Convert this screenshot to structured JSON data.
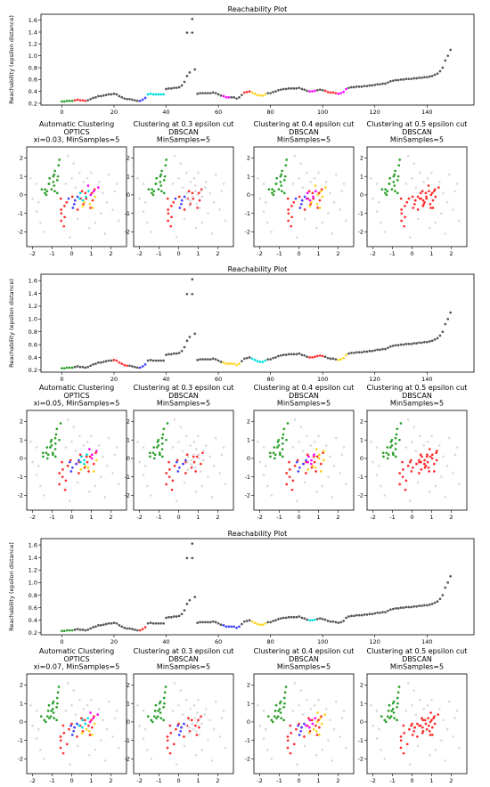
{
  "chart_data": [
    {
      "type": "scatter",
      "title": "Reachability Plot",
      "xlabel": "",
      "ylabel": "Reachability (epsilon distance)",
      "xlim": [
        -8,
        158
      ],
      "ylim": [
        0.17,
        1.7
      ],
      "xticks": [
        "0",
        "20",
        "40",
        "60",
        "80",
        "100",
        "120",
        "140"
      ],
      "yticks": [
        "0.2",
        "0.4",
        "0.6",
        "0.8",
        "1.0",
        "1.2",
        "1.4",
        "1.6"
      ],
      "x": [
        0,
        1,
        2,
        3,
        4,
        5,
        6,
        7,
        8,
        9,
        10,
        11,
        12,
        13,
        14,
        15,
        16,
        17,
        18,
        19,
        20,
        21,
        22,
        23,
        24,
        25,
        26,
        27,
        28,
        29,
        30,
        31,
        32,
        33,
        34,
        35,
        36,
        37,
        38,
        39,
        40,
        41,
        42,
        43,
        44,
        45,
        46,
        47,
        48,
        49,
        50,
        51,
        52,
        53,
        54,
        55,
        56,
        57,
        58,
        59,
        60,
        61,
        62,
        63,
        64,
        65,
        66,
        67,
        68,
        69,
        70,
        71,
        72,
        73,
        74,
        75,
        76,
        77,
        78,
        79,
        80,
        81,
        82,
        83,
        84,
        85,
        86,
        87,
        88,
        89,
        90,
        91,
        92,
        93,
        94,
        95,
        96,
        97,
        98,
        99,
        100,
        101,
        102,
        103,
        104,
        105,
        106,
        107,
        108,
        109,
        110,
        111,
        112,
        113,
        114,
        115,
        116,
        117,
        118,
        119,
        120,
        121,
        122,
        123,
        124,
        125,
        126,
        127,
        128,
        129,
        130,
        131,
        132,
        133,
        134,
        135,
        136,
        137,
        138,
        139,
        140,
        141,
        142,
        143,
        144,
        145,
        146,
        147,
        148,
        149
      ],
      "y": [
        0.23,
        0.23,
        0.24,
        0.24,
        0.24,
        0.25,
        0.26,
        0.25,
        0.25,
        0.24,
        0.25,
        0.27,
        0.29,
        0.3,
        0.32,
        0.32,
        0.33,
        0.34,
        0.35,
        0.35,
        0.36,
        0.35,
        0.32,
        0.3,
        0.28,
        0.27,
        0.27,
        0.26,
        0.25,
        0.24,
        0.24,
        0.26,
        0.29,
        0.35,
        0.36,
        0.35,
        0.35,
        0.35,
        0.35,
        0.35,
        0.44,
        0.45,
        0.45,
        0.46,
        0.46,
        0.47,
        0.5,
        0.56,
        0.66,
        0.72,
        1.39,
        0.77,
        0.36,
        0.37,
        0.37,
        0.37,
        0.37,
        0.37,
        0.38,
        0.37,
        0.35,
        0.33,
        0.32,
        0.3,
        0.3,
        0.3,
        0.3,
        0.28,
        0.3,
        0.34,
        0.38,
        0.39,
        0.4,
        0.38,
        0.36,
        0.34,
        0.33,
        0.33,
        0.35,
        0.37,
        0.37,
        0.39,
        0.4,
        0.42,
        0.43,
        0.44,
        0.44,
        0.45,
        0.45,
        0.45,
        0.45,
        0.46,
        0.44,
        0.43,
        0.41,
        0.4,
        0.4,
        0.41,
        0.42,
        0.43,
        0.42,
        0.41,
        0.39,
        0.38,
        0.38,
        0.37,
        0.36,
        0.37,
        0.39,
        0.44,
        0.46,
        0.47,
        0.47,
        0.48,
        0.48,
        0.48,
        0.49,
        0.49,
        0.5,
        0.5,
        0.51,
        0.52,
        0.52,
        0.53,
        0.53,
        0.55,
        0.57,
        0.58,
        0.59,
        0.59,
        0.6,
        0.6,
        0.61,
        0.61,
        0.61,
        0.62,
        0.62,
        0.63,
        0.63,
        0.64,
        0.64,
        0.65,
        0.66,
        0.68,
        0.7,
        0.74,
        0.8,
        0.92,
        1.0,
        1.1
      ],
      "extra_points": [
        {
          "x": 50,
          "y": 1.62
        },
        {
          "x": 48,
          "y": 1.39
        }
      ],
      "series_colors": [
        "#2ca02c",
        "#ff2d2d",
        "#4040ff",
        "#00dede",
        "#ff00ff",
        "#ffd21a",
        "#555555"
      ],
      "segments": [
        [
          0,
          4,
          0
        ],
        [
          5,
          9,
          1
        ],
        [
          10,
          29,
          6
        ],
        [
          30,
          32,
          2
        ],
        [
          33,
          39,
          3
        ],
        [
          40,
          51,
          6
        ],
        [
          52,
          61,
          6
        ],
        [
          62,
          64,
          4
        ],
        [
          65,
          69,
          6
        ],
        [
          70,
          72,
          1
        ],
        [
          73,
          78,
          5
        ],
        [
          79,
          94,
          6
        ],
        [
          95,
          97,
          4
        ],
        [
          98,
          100,
          6
        ],
        [
          101,
          105,
          1
        ],
        [
          106,
          109,
          4
        ],
        [
          110,
          149,
          6
        ]
      ]
    },
    {
      "type": "scatter",
      "title": "Reachability Plot",
      "xlabel": "",
      "ylabel": "Reachability (epsilon distance)",
      "xlim": [
        -8,
        158
      ],
      "ylim": [
        0.17,
        1.7
      ],
      "xticks": [
        "0",
        "20",
        "40",
        "60",
        "80",
        "100",
        "120",
        "140"
      ],
      "yticks": [
        "0.2",
        "0.4",
        "0.6",
        "0.8",
        "1.0",
        "1.2",
        "1.4",
        "1.6"
      ],
      "segments": [
        [
          0,
          4,
          0
        ],
        [
          5,
          9,
          6
        ],
        [
          10,
          19,
          6
        ],
        [
          20,
          25,
          1
        ],
        [
          26,
          29,
          6
        ],
        [
          30,
          32,
          2
        ],
        [
          33,
          39,
          6
        ],
        [
          40,
          51,
          6
        ],
        [
          52,
          61,
          6
        ],
        [
          62,
          68,
          5
        ],
        [
          69,
          72,
          6
        ],
        [
          73,
          78,
          3
        ],
        [
          79,
          94,
          6
        ],
        [
          95,
          100,
          1
        ],
        [
          101,
          105,
          6
        ],
        [
          106,
          109,
          5
        ],
        [
          110,
          149,
          6
        ]
      ]
    },
    {
      "type": "scatter",
      "title": "Reachability Plot",
      "xlabel": "",
      "ylabel": "Reachability (epsilon distance)",
      "xlim": [
        -8,
        158
      ],
      "ylim": [
        0.17,
        1.7
      ],
      "xticks": [
        "0",
        "20",
        "40",
        "60",
        "80",
        "100",
        "120",
        "140"
      ],
      "yticks": [
        "0.2",
        "0.4",
        "0.6",
        "0.8",
        "1.0",
        "1.2",
        "1.4",
        "1.6"
      ],
      "segments": [
        [
          0,
          4,
          0
        ],
        [
          5,
          29,
          6
        ],
        [
          30,
          32,
          1
        ],
        [
          33,
          61,
          6
        ],
        [
          62,
          68,
          2
        ],
        [
          69,
          72,
          6
        ],
        [
          73,
          78,
          5
        ],
        [
          79,
          94,
          6
        ],
        [
          95,
          97,
          3
        ],
        [
          98,
          149,
          6
        ]
      ]
    },
    {
      "type": "scatter",
      "panel": "clusters",
      "titles": [
        [
          "Automatic Clustering",
          "OPTICS",
          "xi=0.03, MinSamples=5"
        ],
        [
          "Clustering at 0.3 epsilon cut",
          "DBSCAN",
          "MinSamples=5"
        ],
        [
          "Clustering at 0.4 epsilon cut",
          "DBSCAN",
          "MinSamples=5"
        ],
        [
          "Clustering at 0.5 epsilon cut",
          "DBSCAN",
          "MinSamples=5"
        ]
      ],
      "xlim": [
        -2.3,
        2.8
      ],
      "ylim": [
        -2.8,
        2.6
      ],
      "xticks": [
        "-2",
        "-1",
        "0",
        "1",
        "2"
      ],
      "yticks": [
        "-2",
        "-1",
        "0",
        "1",
        "2"
      ]
    },
    {
      "type": "scatter",
      "panel": "clusters",
      "titles": [
        [
          "Automatic Clustering",
          "OPTICS",
          "xi=0.05, MinSamples=5"
        ],
        [
          "Clustering at 0.3 epsilon cut",
          "DBSCAN",
          "MinSamples=5"
        ],
        [
          "Clustering at 0.4 epsilon cut",
          "DBSCAN",
          "MinSamples=5"
        ],
        [
          "Clustering at 0.5 epsilon cut",
          "DBSCAN",
          "MinSamples=5"
        ]
      ],
      "xlim": [
        -2.3,
        2.8
      ],
      "ylim": [
        -2.8,
        2.6
      ],
      "xticks": [
        "-2",
        "-1",
        "0",
        "1",
        "2"
      ],
      "yticks": [
        "-2",
        "-1",
        "0",
        "1",
        "2"
      ]
    },
    {
      "type": "scatter",
      "panel": "clusters",
      "titles": [
        [
          "Automatic Clustering",
          "OPTICS",
          "xi=0.07, MinSamples=5"
        ],
        [
          "Clustering at 0.3 epsilon cut",
          "DBSCAN",
          "MinSamples=5"
        ],
        [
          "Clustering at 0.4 epsilon cut",
          "DBSCAN",
          "MinSamples=5"
        ],
        [
          "Clustering at 0.5 epsilon cut",
          "DBSCAN",
          "MinSamples=5"
        ]
      ],
      "xlim": [
        -2.3,
        2.8
      ],
      "ylim": [
        -2.8,
        2.6
      ],
      "xticks": [
        "-2",
        "-1",
        "0",
        "1",
        "2"
      ],
      "yticks": [
        "-2",
        "-1",
        "0",
        "1",
        "2"
      ]
    }
  ],
  "points": {
    "noise_color": "#d9d9dd",
    "clusters": [
      {
        "name": "g",
        "color": "#2ca02c",
        "pts": [
          [
            -1.3,
            0.3
          ],
          [
            -1.2,
            0.6
          ],
          [
            -1.1,
            0.9
          ],
          [
            -1.0,
            1.0
          ],
          [
            -0.9,
            1.1
          ],
          [
            -0.8,
            1.3
          ],
          [
            -0.7,
            1.6
          ],
          [
            -0.6,
            1.9
          ],
          [
            -1.0,
            0.7
          ],
          [
            -0.9,
            0.5
          ],
          [
            -1.2,
            0.2
          ],
          [
            -1.4,
            0.1
          ],
          [
            -1.0,
            0.3
          ],
          [
            -0.8,
            0.8
          ],
          [
            -0.7,
            1.0
          ],
          [
            -1.1,
            0.6
          ],
          [
            -0.9,
            0.2
          ],
          [
            -1.5,
            0.3
          ],
          [
            -0.8,
            0.1
          ],
          [
            -1.3,
            0.0
          ]
        ]
      },
      {
        "name": "r",
        "color": "#ff2d2d",
        "pts": [
          [
            -0.5,
            -0.2
          ],
          [
            -0.4,
            -0.6
          ],
          [
            -0.5,
            -1.0
          ],
          [
            -0.6,
            -1.4
          ],
          [
            -0.4,
            -1.7
          ],
          [
            -0.2,
            -0.4
          ],
          [
            0.0,
            -0.1
          ],
          [
            0.2,
            -0.3
          ],
          [
            0.4,
            -0.2
          ],
          [
            0.6,
            -0.5
          ],
          [
            0.8,
            -0.2
          ],
          [
            1.0,
            0.1
          ],
          [
            1.2,
            0.3
          ],
          [
            0.9,
            -0.7
          ],
          [
            0.3,
            -0.8
          ],
          [
            -0.3,
            -1.2
          ],
          [
            0.5,
            0.2
          ],
          [
            1.1,
            -0.3
          ],
          [
            -0.6,
            -0.8
          ],
          [
            0.7,
            0.1
          ]
        ]
      },
      {
        "name": "b",
        "color": "#4040ff",
        "pts": [
          [
            -0.1,
            -0.2
          ],
          [
            0.1,
            -0.5
          ],
          [
            0.2,
            -0.3
          ],
          [
            0.0,
            -0.7
          ],
          [
            0.3,
            -0.1
          ]
        ]
      },
      {
        "name": "c",
        "color": "#00dede",
        "pts": [
          [
            0.5,
            0.1
          ],
          [
            0.7,
            -0.1
          ],
          [
            0.6,
            -0.3
          ],
          [
            0.8,
            0.2
          ],
          [
            0.4,
            -0.2
          ]
        ]
      },
      {
        "name": "m",
        "color": "#ff00ff",
        "pts": [
          [
            0.9,
            0.5
          ],
          [
            1.1,
            0.2
          ],
          [
            1.0,
            0.0
          ],
          [
            1.3,
            0.4
          ]
        ]
      },
      {
        "name": "y",
        "color": "#ffd21a",
        "pts": [
          [
            0.7,
            -0.4
          ],
          [
            0.9,
            -0.5
          ],
          [
            1.1,
            -0.7
          ],
          [
            0.5,
            -0.6
          ],
          [
            1.2,
            -0.1
          ]
        ]
      }
    ],
    "noise": [
      [
        -2.0,
        -0.2
      ],
      [
        -1.8,
        -0.9
      ],
      [
        -1.6,
        -1.5
      ],
      [
        -1.4,
        -2.0
      ],
      [
        -0.2,
        2.1
      ],
      [
        0.1,
        1.7
      ],
      [
        0.4,
        1.2
      ],
      [
        0.8,
        0.9
      ],
      [
        1.5,
        -1.0
      ],
      [
        1.8,
        -0.4
      ],
      [
        2.2,
        0.2
      ],
      [
        2.4,
        -1.4
      ],
      [
        1.7,
        -2.1
      ],
      [
        0.9,
        -1.8
      ],
      [
        -0.1,
        -2.3
      ],
      [
        0.3,
        -1.3
      ],
      [
        1.4,
        0.7
      ],
      [
        1.9,
        1.1
      ],
      [
        -1.8,
        0.6
      ],
      [
        2.1,
        -0.8
      ],
      [
        1.2,
        -1.5
      ],
      [
        -0.3,
        0.6
      ],
      [
        0.0,
        0.9
      ],
      [
        1.6,
        0.1
      ],
      [
        2.3,
        0.6
      ],
      [
        0.6,
        0.7
      ],
      [
        -1.7,
        -0.4
      ],
      [
        0.2,
        0.4
      ],
      [
        1.0,
        1.2
      ],
      [
        -2.1,
        0.9
      ]
    ]
  }
}
